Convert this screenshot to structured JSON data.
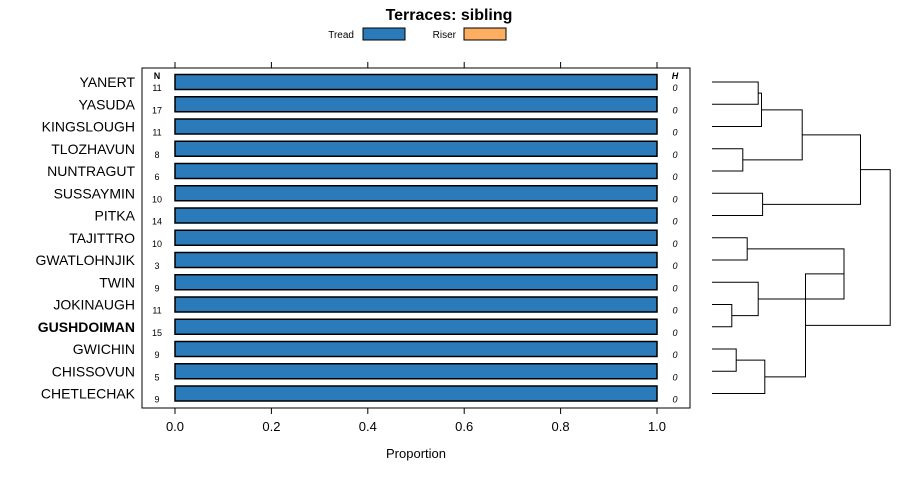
{
  "chart_data": {
    "type": "bar",
    "orientation": "horizontal",
    "stacked": true,
    "title": "Terraces: sibling",
    "xlabel": "Proportion",
    "ylabel": "",
    "xlim": [
      0,
      1
    ],
    "xticks": [
      "0.0",
      "0.2",
      "0.4",
      "0.6",
      "0.8",
      "1.0"
    ],
    "n_header": "N",
    "h_header": "H",
    "highlight": "GUSHDOIMAN",
    "legend": [
      {
        "label": "Tread",
        "color": "#2b7bba"
      },
      {
        "label": "Riser",
        "color": "#fdae61"
      }
    ],
    "categories": [
      "YANERT",
      "YASUDA",
      "KINGSLOUGH",
      "TLOZHAVUN",
      "NUNTRAGUT",
      "SUSSAYMIN",
      "PITKA",
      "TAJITTRO",
      "GWATLOHNJIK",
      "TWIN",
      "JOKINAUGH",
      "GUSHDOIMAN",
      "GWICHIN",
      "CHISSOVUN",
      "CHETLECHAK"
    ],
    "n": [
      "11",
      "17",
      "11",
      "8",
      "6",
      "10",
      "14",
      "10",
      "3",
      "9",
      "11",
      "15",
      "9",
      "5",
      "9"
    ],
    "h": [
      "0",
      "0",
      "0",
      "0",
      "0",
      "0",
      "0",
      "0",
      "0",
      "0",
      "0",
      "0",
      "0",
      "0",
      "0"
    ],
    "series": [
      {
        "name": "Tread",
        "color": "#2b7bba",
        "values": [
          1,
          1,
          1,
          1,
          1,
          1,
          1,
          1,
          1,
          1,
          1,
          1,
          1,
          1,
          1
        ]
      },
      {
        "name": "Riser",
        "color": "#fdae61",
        "values": [
          0,
          0,
          0,
          0,
          0,
          0,
          0,
          0,
          0,
          0,
          0,
          0,
          0,
          0,
          0
        ]
      }
    ],
    "dendrogram_merges": [
      [
        0,
        1,
        0.42
      ],
      [
        2,
        15,
        0.45
      ],
      [
        3,
        4,
        0.28
      ],
      [
        5,
        6,
        0.46
      ],
      [
        7,
        8,
        0.32
      ],
      [
        10,
        11,
        0.18
      ],
      [
        9,
        20,
        0.42
      ],
      [
        12,
        13,
        0.22
      ],
      [
        14,
        22,
        0.48
      ],
      [
        19,
        21,
        1.2
      ],
      [
        16,
        17,
        0.82
      ],
      [
        18,
        25,
        1.35
      ],
      [
        23,
        24,
        0.85
      ],
      [
        26,
        27,
        1.62
      ]
    ]
  }
}
